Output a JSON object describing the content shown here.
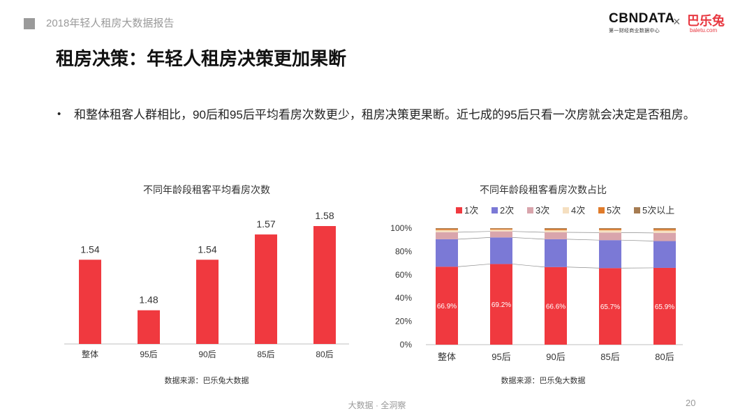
{
  "header": {
    "report_title": "2018年轻人租房大数据报告",
    "brand_cbn": "CBNDATA",
    "brand_cbn_sub": "第一财经商业数据中心",
    "brand_times": "×",
    "brand_baletu": "巴乐兔",
    "brand_baletu_sub": "baletu.com"
  },
  "page_title": "租房决策：年轻人租房决策更加果断",
  "bullet": {
    "symbol": "•",
    "text": "和整体租客人群相比，90后和95后平均看房次数更少，租房决策更果断。近七成的95后只看一次房就会决定是否租房。"
  },
  "chart_data": [
    {
      "type": "bar",
      "title": "不同年龄段租客平均看房次数",
      "categories": [
        "整体",
        "95后",
        "90后",
        "85后",
        "80后"
      ],
      "values": [
        1.54,
        1.48,
        1.54,
        1.57,
        1.58
      ],
      "data_labels": [
        "1.54",
        "1.48",
        "1.54",
        "1.57",
        "1.58"
      ],
      "xlabel": "",
      "ylabel": "",
      "ylim": [
        1.44,
        1.58
      ],
      "grid": false,
      "color": "#f0393f",
      "source": "数据来源：巴乐兔大数据"
    },
    {
      "type": "bar",
      "stacked": true,
      "title": "不同年龄段租客看房次数占比",
      "categories": [
        "整体",
        "95后",
        "90后",
        "85后",
        "80后"
      ],
      "series": [
        {
          "name": "1次",
          "color": "#f0393f",
          "values": [
            66.9,
            69.2,
            66.6,
            65.7,
            65.9
          ],
          "labels": [
            "66.9%",
            "69.2%",
            "66.6%",
            "65.7%",
            "65.9%"
          ]
        },
        {
          "name": "2次",
          "color": "#7b79d6",
          "values": [
            23.6,
            22.8,
            23.9,
            24.0,
            23.0
          ]
        },
        {
          "name": "3次",
          "color": "#d9a5ac",
          "values": [
            6.0,
            5.2,
            5.9,
            6.5,
            7.0
          ]
        },
        {
          "name": "4次",
          "color": "#f5dfc0",
          "values": [
            1.8,
            1.5,
            1.8,
            2.0,
            2.1
          ]
        },
        {
          "name": "5次",
          "color": "#e07b2a",
          "values": [
            1.0,
            0.8,
            1.0,
            1.1,
            1.2
          ]
        },
        {
          "name": "5次以上",
          "color": "#a67c52",
          "values": [
            0.7,
            0.5,
            0.8,
            0.7,
            0.8
          ]
        }
      ],
      "y_ticks": [
        "0%",
        "20%",
        "40%",
        "60%",
        "80%",
        "100%"
      ],
      "ylim": [
        0,
        100
      ],
      "legend": "top",
      "grid": false,
      "source": "数据来源：巴乐兔大数据"
    }
  ],
  "footer": {
    "text": "大数据 · 全洞察",
    "page_number": "20"
  }
}
